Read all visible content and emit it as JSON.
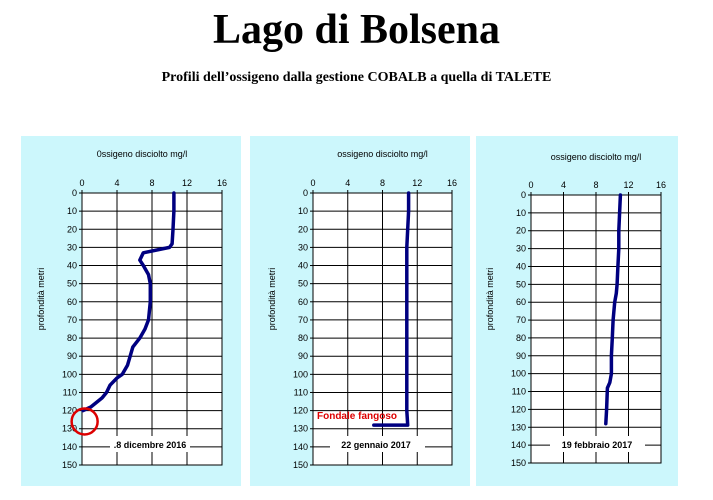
{
  "title": "Lago di Bolsena",
  "subtitle": "Profili dell’ossigeno dalla gestione COBALB a quella di TALETE",
  "colors": {
    "panel_background": "#ccf7fc",
    "line": "#000080",
    "annotation": "#dd0000",
    "grid": "#000000"
  },
  "chart_data": [
    {
      "type": "line",
      "title": "0ssigeno disciolto mg/l",
      "xlabel": "0ssigeno disciolto mg/l",
      "ylabel": "profondità metri",
      "xlim": [
        0,
        16
      ],
      "ylim": [
        0,
        150
      ],
      "y_inverted": true,
      "x_axis_position": "top",
      "x_ticks": [
        "0",
        "4",
        "8",
        "12",
        "16"
      ],
      "y_ticks": [
        "0",
        "10",
        "20",
        "30",
        "40",
        "50",
        "60",
        "70",
        "80",
        "90",
        "100",
        "110",
        "120",
        "130",
        "140",
        "150"
      ],
      "grid": true,
      "date_label": ".8 dicembre 2016",
      "series": [
        {
          "x": [
            10.5,
            10.5,
            10.4,
            10.3,
            10.0,
            7.0,
            6.6,
            7.0,
            7.6,
            7.8,
            7.8,
            7.8,
            7.6,
            7.2,
            6.6,
            5.8,
            5.2,
            4.6,
            4.0,
            3.2,
            2.8,
            2.3,
            1.0,
            0.1
          ],
          "y": [
            0,
            10,
            20,
            28,
            30,
            33,
            37,
            40,
            45,
            50,
            55,
            60,
            70,
            75,
            80,
            85,
            95,
            100,
            102,
            106,
            110,
            113,
            118,
            120
          ]
        }
      ],
      "annotation": {
        "type": "circle",
        "x": 0.3,
        "y": 126
      }
    },
    {
      "type": "line",
      "title": "ossigeno disciolto mg/l",
      "xlabel": "ossigeno disciolto mg/l",
      "ylabel": "profondità metri",
      "xlim": [
        0,
        16
      ],
      "ylim": [
        0,
        150
      ],
      "y_inverted": true,
      "x_axis_position": "top",
      "x_ticks": [
        "0",
        "4",
        "8",
        "12",
        "16"
      ],
      "y_ticks": [
        "0",
        "10",
        "20",
        "30",
        "40",
        "50",
        "60",
        "70",
        "80",
        "90",
        "100",
        "110",
        "120",
        "130",
        "140",
        "150"
      ],
      "grid": true,
      "date_label": "22 gennaio 2017",
      "series": [
        {
          "x": [
            11.0,
            11.0,
            10.9,
            10.8,
            10.8,
            10.8,
            10.8,
            10.8,
            10.8,
            10.8,
            10.8,
            10.8,
            10.8,
            10.9,
            7.0
          ],
          "y": [
            0,
            10,
            20,
            30,
            40,
            50,
            60,
            70,
            80,
            90,
            100,
            110,
            120,
            128,
            128
          ]
        }
      ],
      "annotation": {
        "type": "text",
        "text": "Fondale fangoso"
      }
    },
    {
      "type": "line",
      "title": "ossigeno disciolto mg/l",
      "xlabel": "ossigeno disciolto mg/l",
      "ylabel": "profondità metri",
      "xlim": [
        0,
        16
      ],
      "ylim": [
        0,
        150
      ],
      "y_inverted": true,
      "x_axis_position": "top",
      "x_ticks": [
        "0",
        "4",
        "8",
        "12",
        "16"
      ],
      "y_ticks": [
        "0",
        "10",
        "20",
        "30",
        "40",
        "50",
        "60",
        "70",
        "80",
        "90",
        "100",
        "110",
        "120",
        "130",
        "140",
        "150"
      ],
      "grid": true,
      "date_label": "19 febbraio 2017",
      "series": [
        {
          "x": [
            11.0,
            10.9,
            10.8,
            10.8,
            10.7,
            10.6,
            10.5,
            10.3,
            10.1,
            10.0,
            9.9,
            9.9,
            9.7,
            9.4,
            9.3,
            9.2
          ],
          "y": [
            0,
            10,
            20,
            30,
            40,
            50,
            55,
            60,
            70,
            80,
            90,
            100,
            105,
            108,
            120,
            128
          ]
        }
      ]
    }
  ]
}
